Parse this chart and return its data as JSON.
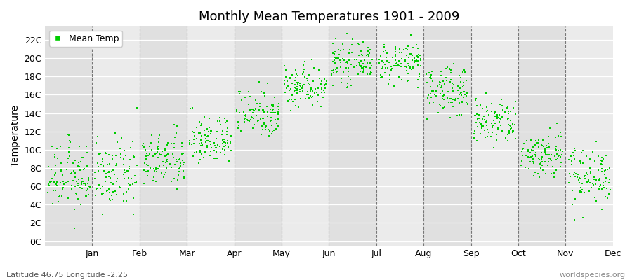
{
  "title": "Monthly Mean Temperatures 1901 - 2009",
  "ylabel": "Temperature",
  "xlabel_labels": [
    "Jan",
    "Feb",
    "Mar",
    "Apr",
    "May",
    "Jun",
    "Jul",
    "Aug",
    "Sep",
    "Oct",
    "Nov",
    "Dec"
  ],
  "ytick_labels": [
    "0C",
    "2C",
    "4C",
    "6C",
    "8C",
    "10C",
    "12C",
    "14C",
    "16C",
    "18C",
    "20C",
    "22C"
  ],
  "ytick_values": [
    0,
    2,
    4,
    6,
    8,
    10,
    12,
    14,
    16,
    18,
    20,
    22
  ],
  "ylim": [
    -0.5,
    23.5
  ],
  "dot_color": "#00cc00",
  "dot_size": 3,
  "stripe_color_light": "#ebebeb",
  "stripe_color_dark": "#e0e0e0",
  "grid_color": "#777777",
  "legend_label": "Mean Temp",
  "footer_left": "Latitude 46.75 Longitude -2.25",
  "footer_right": "worldspecies.org",
  "monthly_means": [
    7.0,
    7.2,
    8.8,
    11.0,
    14.0,
    17.0,
    19.5,
    19.5,
    16.5,
    13.0,
    9.5,
    7.2
  ],
  "monthly_stds": [
    1.8,
    1.8,
    1.5,
    1.3,
    1.3,
    1.2,
    1.0,
    1.0,
    1.3,
    1.3,
    1.3,
    1.6
  ],
  "years": 109,
  "start_year": 1901
}
